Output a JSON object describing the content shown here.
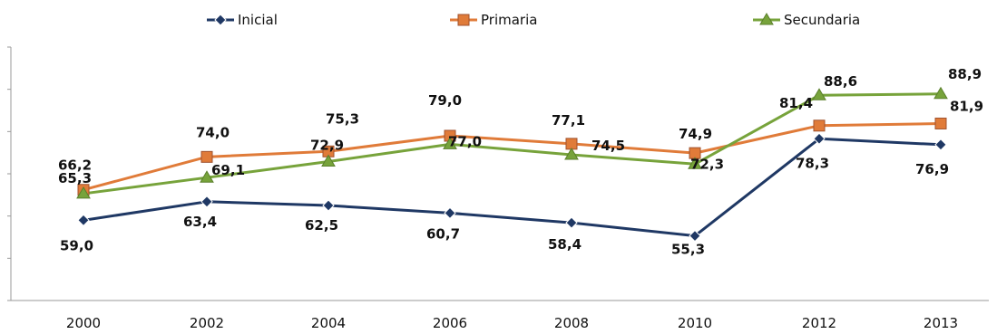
{
  "chart_data": {
    "type": "line",
    "title": "",
    "xlabel": "",
    "ylabel": "",
    "categories": [
      "2000",
      "2002",
      "2004",
      "2006",
      "2008",
      "2010",
      "2012",
      "2013"
    ],
    "ylim": [
      40,
      100
    ],
    "y_tick_labels_visible": false,
    "grid": false,
    "legend_position": "top",
    "series": [
      {
        "name": "Inicial",
        "color": "#1f3864",
        "marker": "diamond",
        "values": [
          59.0,
          63.4,
          62.5,
          60.7,
          58.4,
          55.3,
          78.3,
          76.9
        ],
        "labels": [
          "59,0",
          "63,4",
          "62,5",
          "60,7",
          "58,4",
          "55,3",
          "78,3",
          "76,9"
        ]
      },
      {
        "name": "Primaria",
        "color": "#e07b39",
        "marker": "square",
        "values": [
          66.2,
          74.0,
          75.3,
          79.0,
          77.1,
          74.9,
          81.4,
          81.9
        ],
        "labels": [
          "66,2",
          "74,0",
          "75,3",
          "79,0",
          "77,1",
          "74,9",
          "81,4",
          "81,9"
        ]
      },
      {
        "name": "Secundaria",
        "color": "#77a33b",
        "marker": "triangle",
        "values": [
          65.3,
          69.1,
          72.9,
          77.0,
          74.5,
          72.3,
          88.6,
          88.9
        ],
        "labels": [
          "65,3",
          "69,1",
          "72,9",
          "77,0",
          "74,5",
          "72,3",
          "88,6",
          "88,9"
        ]
      }
    ]
  }
}
